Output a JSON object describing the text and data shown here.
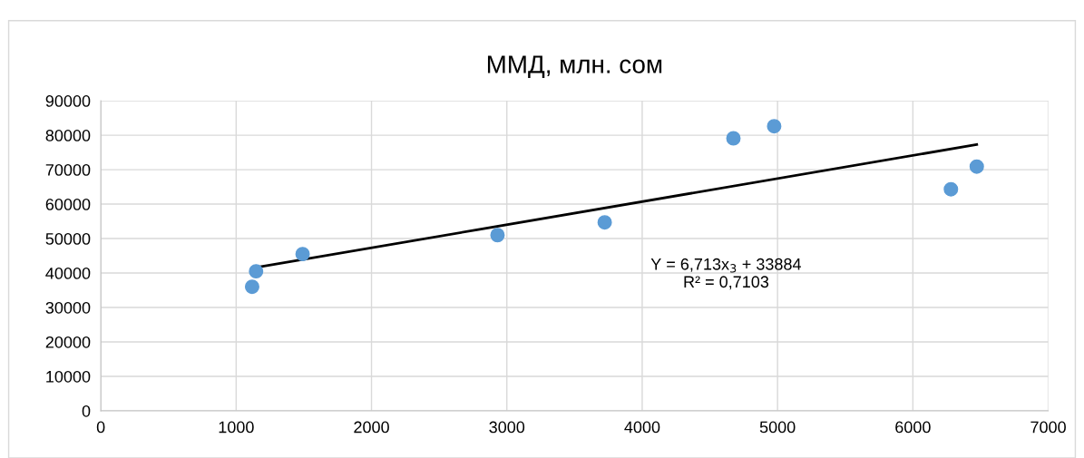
{
  "chart_data": {
    "type": "scatter",
    "title": "ММД, млн. сом",
    "xlim": [
      0,
      7000
    ],
    "xticks": [
      0,
      1000,
      2000,
      3000,
      4000,
      5000,
      6000,
      7000
    ],
    "ylim": [
      0,
      90000
    ],
    "yticks": [
      0,
      10000,
      20000,
      30000,
      40000,
      50000,
      60000,
      70000,
      80000,
      90000
    ],
    "grid": true,
    "legend": false,
    "series": [
      {
        "color": "#5b9bd5",
        "marker": "circle",
        "x": [
          1118,
          1147,
          1491,
          2931,
          3723,
          4674,
          4975,
          6281,
          6472
        ],
        "values": [
          36000,
          40500,
          45500,
          51000,
          54700,
          79100,
          82600,
          64300,
          70900
        ]
      },
      {
        "type": "line",
        "color": "#000000",
        "marker": "none",
        "line_style": "solid",
        "x": [
          1118,
          6472
        ],
        "values": [
          41400,
          77300
        ]
      }
    ],
    "annotations": [
      "Y = 6,713x$_{3}$ + 33884\nR² = 0,7103"
    ]
  }
}
